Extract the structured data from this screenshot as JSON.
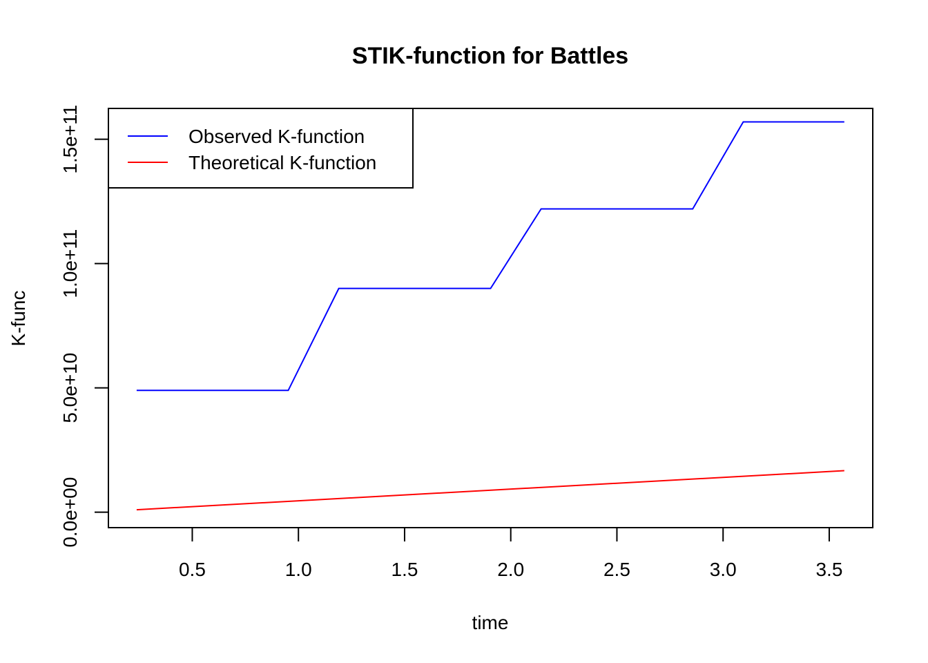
{
  "chart_data": {
    "type": "line",
    "title": "STIK-function for Battles",
    "xlabel": "time",
    "ylabel": "K-func",
    "xlim": [
      0.105,
      3.705
    ],
    "ylim": [
      -6200000000.0,
      162400000000.0
    ],
    "x_ticks": [
      0.5,
      1.0,
      1.5,
      2.0,
      2.5,
      3.0,
      3.5
    ],
    "x_tick_labels": [
      "0.5",
      "1.0",
      "1.5",
      "2.0",
      "2.5",
      "3.0",
      "3.5"
    ],
    "y_ticks": [
      0,
      50000000000.0,
      100000000000.0,
      150000000000.0
    ],
    "y_tick_labels": [
      "0.0e+00",
      "5.0e+10",
      "1.0e+11",
      "1.5e+11"
    ],
    "grid": false,
    "legend_position": "top-left",
    "series": [
      {
        "name": "Observed K-function",
        "color": "#0000ff",
        "x": [
          0.238,
          0.952,
          1.19,
          1.905,
          2.143,
          2.857,
          3.095,
          3.571
        ],
        "y": [
          49000000000.0,
          49000000000.0,
          90000000000.0,
          90000000000.0,
          122000000000.0,
          122000000000.0,
          157000000000.0,
          157000000000.0
        ]
      },
      {
        "name": "Theoretical K-function",
        "color": "#ff0000",
        "x": [
          0.238,
          3.571
        ],
        "y": [
          1000000000.0,
          16700000000.0
        ]
      }
    ]
  }
}
